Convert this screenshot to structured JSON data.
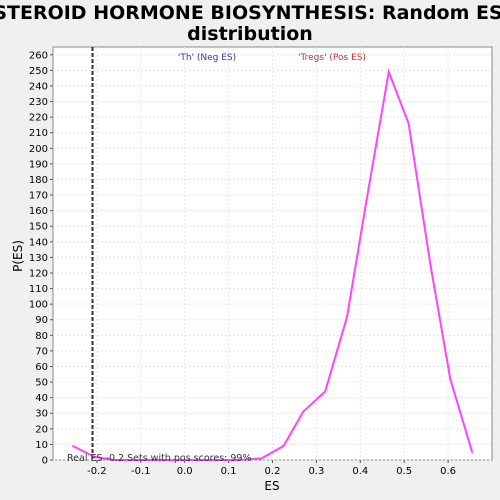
{
  "chart_data": {
    "type": "line",
    "title_lines": [
      "STEROID HORMONE BIOSYNTHESIS: Random ES",
      "distribution"
    ],
    "xlabel": "ES",
    "ylabel": "P(ES)",
    "xlim": [
      -0.3,
      0.7
    ],
    "ylim": [
      0,
      265
    ],
    "x_ticks": [
      -0.2,
      -0.1,
      0.0,
      0.1,
      0.2,
      0.3,
      0.4,
      0.5,
      0.6
    ],
    "y_ticks": [
      0,
      10,
      20,
      30,
      40,
      50,
      60,
      70,
      80,
      90,
      100,
      110,
      120,
      130,
      140,
      150,
      160,
      170,
      180,
      190,
      200,
      210,
      220,
      230,
      240,
      250,
      260
    ],
    "grid": true,
    "series": [
      {
        "color": "#ff44ff",
        "x": [
          -0.255,
          -0.205,
          -0.16,
          -0.11,
          -0.065,
          -0.015,
          0.03,
          0.075,
          0.12,
          0.175,
          0.225,
          0.27,
          0.32,
          0.37,
          0.415,
          0.465,
          0.51,
          0.56,
          0.605,
          0.655
        ],
        "y": [
          9,
          2,
          0,
          0,
          0,
          0,
          0,
          0,
          0,
          1,
          9,
          31,
          44,
          92,
          168,
          249,
          216,
          125,
          52,
          5
        ]
      }
    ],
    "real_es": -0.21,
    "legend": {
      "neg": {
        "label": "'Th' (Neg ES)",
        "color": "#3333cc"
      },
      "pos": {
        "label": "'Tregs' (Pos ES)",
        "color": "#cc3333"
      }
    },
    "annotation": "Real ES -0.2 Sets with pos scores: 99%"
  }
}
